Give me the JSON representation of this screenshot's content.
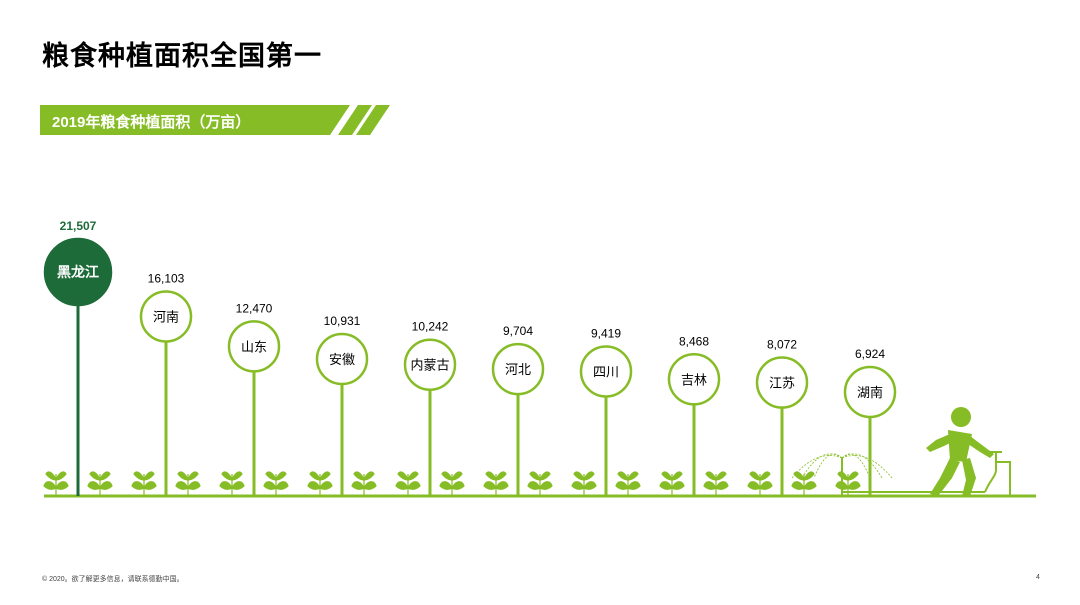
{
  "page": {
    "title": "粮食种植面积全国第一",
    "banner": "2019年粮食种植面积（万亩）",
    "footer": "© 2020。欲了解更多信息，请联系德勤中国。",
    "page_number": "4"
  },
  "colors": {
    "accent": "#86bc25",
    "highlight": "#1e6b3a",
    "text": "#000000"
  },
  "chart_data": {
    "type": "bar",
    "title": "2019年粮食种植面积（万亩）",
    "unit": "万亩",
    "categories": [
      "黑龙江",
      "河南",
      "山东",
      "安徽",
      "内蒙古",
      "河北",
      "四川",
      "吉林",
      "江苏",
      "湖南"
    ],
    "values": [
      21507,
      16103,
      12470,
      10931,
      10242,
      9704,
      9419,
      8468,
      8072,
      6924
    ],
    "value_labels": [
      "21,507",
      "16,103",
      "12,470",
      "10,931",
      "10,242",
      "9,704",
      "9,419",
      "8,468",
      "8,072",
      "6,924"
    ],
    "highlight_index": 0,
    "grid": false,
    "legend": "none"
  }
}
